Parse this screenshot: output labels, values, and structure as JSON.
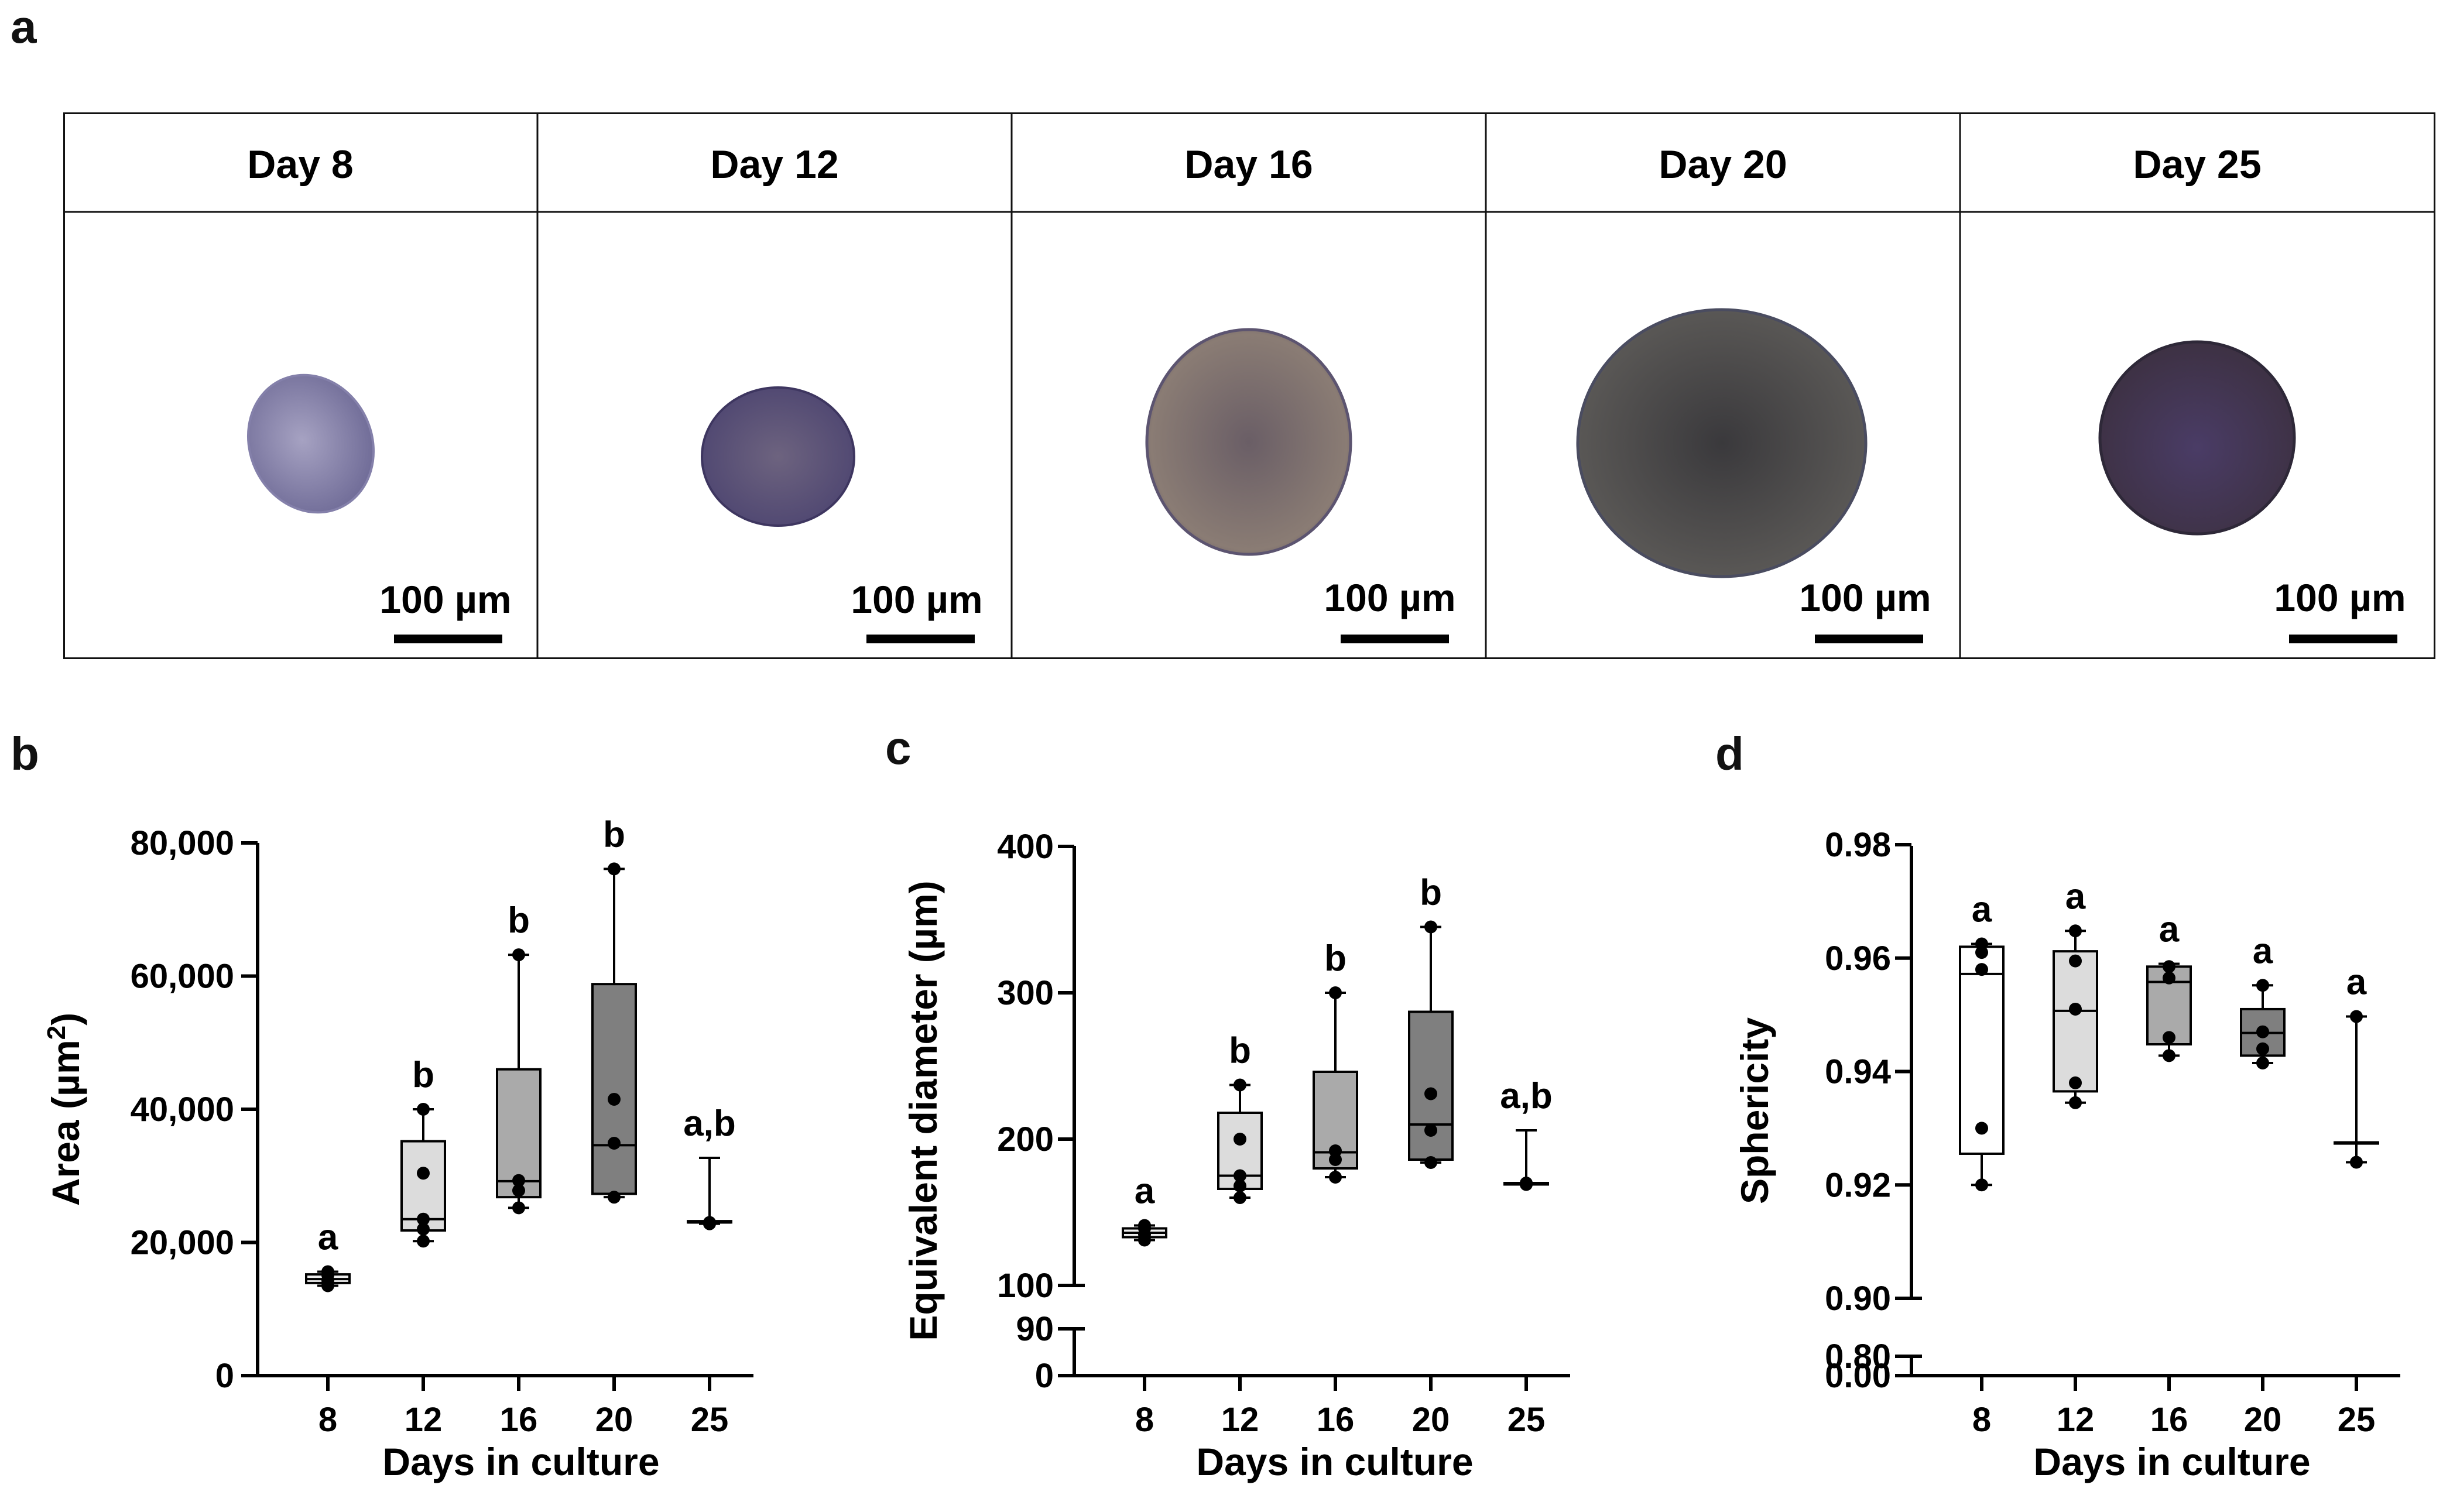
{
  "panel_letters": [
    "a",
    "b",
    "c",
    "d"
  ],
  "micrographs": {
    "days": [
      "Day 8",
      "Day 12",
      "Day 16",
      "Day 20",
      "Day 25"
    ],
    "scale_bar_label": "100 µm",
    "colors": [
      "#8a86b0",
      "#5f5680",
      "#7a6e78",
      "#4c4a50",
      "#4a3c58"
    ]
  },
  "chart_data": [
    {
      "panel": "b",
      "type": "box",
      "xlabel": "Days in culture",
      "ylabel": "Area (µm",
      "ylabel_sup": "2",
      "ylabel_tail": ")",
      "categories": [
        "8",
        "12",
        "16",
        "20",
        "25"
      ],
      "yticks": [
        0,
        20000,
        40000,
        60000,
        80000
      ],
      "ytick_labels": [
        "0",
        "20,000",
        "40,000",
        "60,000",
        "80,000"
      ],
      "ylim": [
        0,
        80000
      ],
      "fills": [
        "#eeeeee",
        "#dcdcdc",
        "#aaaaaa",
        "#7f7f7f",
        "#8f8f8f"
      ],
      "boxes": [
        {
          "min": 13500,
          "q1": 13900,
          "median": 14500,
          "q3": 15200,
          "max": 15600,
          "points": [
            13500,
            14300,
            15100,
            15600
          ],
          "letter": "a"
        },
        {
          "min": 20200,
          "q1": 21800,
          "median": 23500,
          "q3": 35200,
          "max": 40000,
          "points": [
            20200,
            22000,
            23500,
            30400,
            40000
          ],
          "letter": "b"
        },
        {
          "min": 25200,
          "q1": 26800,
          "median": 29200,
          "q3": 46000,
          "max": 63200,
          "points": [
            25200,
            27800,
            29300,
            63200
          ],
          "letter": "b"
        },
        {
          "min": 26800,
          "q1": 27300,
          "median": 34600,
          "q3": 58800,
          "max": 76100,
          "points": [
            26800,
            34900,
            41500,
            76100
          ],
          "letter": "b"
        },
        {
          "min": 22800,
          "q1": 23000,
          "median": 23000,
          "q3": 23200,
          "max": 32700,
          "points": [
            22800,
            23000
          ],
          "letter": "a,b"
        }
      ]
    },
    {
      "panel": "c",
      "type": "box",
      "xlabel": "Days in culture",
      "ylabel": "Equivalent diameter (µm)",
      "categories": [
        "8",
        "12",
        "16",
        "20",
        "25"
      ],
      "yticks": [
        0,
        90,
        100,
        200,
        300,
        400
      ],
      "ytick_labels": [
        "0",
        "90",
        "100",
        "200",
        "300",
        "400"
      ],
      "axis_break": [
        90,
        100
      ],
      "ylim": [
        0,
        400
      ],
      "fills": [
        "#eeeeee",
        "#dcdcdc",
        "#aaaaaa",
        "#7f7f7f",
        "#8f8f8f"
      ],
      "boxes": [
        {
          "min": 131,
          "q1": 133,
          "median": 136,
          "q3": 139,
          "max": 141,
          "points": [
            131,
            135,
            139,
            141
          ],
          "letter": "a"
        },
        {
          "min": 160,
          "q1": 166,
          "median": 175,
          "q3": 218,
          "max": 237,
          "points": [
            160,
            168,
            175,
            200,
            237
          ],
          "letter": "b"
        },
        {
          "min": 174,
          "q1": 180,
          "median": 191,
          "q3": 246,
          "max": 300,
          "points": [
            174,
            186,
            192,
            300
          ],
          "letter": "b"
        },
        {
          "min": 184,
          "q1": 186,
          "median": 210,
          "q3": 287,
          "max": 345,
          "points": [
            184,
            206,
            231,
            345
          ],
          "letter": "b"
        },
        {
          "min": 169,
          "q1": 169,
          "median": 169,
          "q3": 170,
          "max": 206,
          "points": [
            169,
            170
          ],
          "letter": "a,b"
        }
      ]
    },
    {
      "panel": "d",
      "type": "box",
      "xlabel": "Days in culture",
      "ylabel": "Sphericity",
      "categories": [
        "8",
        "12",
        "16",
        "20",
        "25"
      ],
      "yticks": [
        0.0,
        0.8,
        0.9,
        0.92,
        0.94,
        0.96,
        0.98
      ],
      "ytick_labels": [
        "0.00",
        "0.80",
        "0.90",
        "0.92",
        "0.94",
        "0.96",
        "0.98"
      ],
      "axis_break": [
        0.8,
        0.9
      ],
      "ylim": [
        0.0,
        0.98
      ],
      "fills": [
        "#ffffff",
        "#dcdcdc",
        "#aaaaaa",
        "#7f7f7f",
        "#8f8f8f"
      ],
      "boxes": [
        {
          "min": 0.92,
          "q1": 0.9255,
          "median": 0.9572,
          "q3": 0.962,
          "max": 0.9625,
          "points": [
            0.92,
            0.93,
            0.958,
            0.961,
            0.9625
          ],
          "letter": "a"
        },
        {
          "min": 0.9345,
          "q1": 0.9365,
          "median": 0.9507,
          "q3": 0.9612,
          "max": 0.9648,
          "points": [
            0.9345,
            0.938,
            0.951,
            0.9595,
            0.9648
          ],
          "letter": "a"
        },
        {
          "min": 0.9428,
          "q1": 0.9448,
          "median": 0.9558,
          "q3": 0.9585,
          "max": 0.959,
          "points": [
            0.9428,
            0.946,
            0.9565,
            0.9585
          ],
          "letter": "a"
        },
        {
          "min": 0.9415,
          "q1": 0.9428,
          "median": 0.9468,
          "q3": 0.951,
          "max": 0.9552,
          "points": [
            0.9415,
            0.944,
            0.947,
            0.9552
          ],
          "letter": "a"
        },
        {
          "min": 0.924,
          "q1": 0.9275,
          "median": 0.9275,
          "q3": 0.9275,
          "max": 0.9497,
          "points": [
            0.924,
            0.9497
          ],
          "letter": "a"
        }
      ]
    }
  ]
}
